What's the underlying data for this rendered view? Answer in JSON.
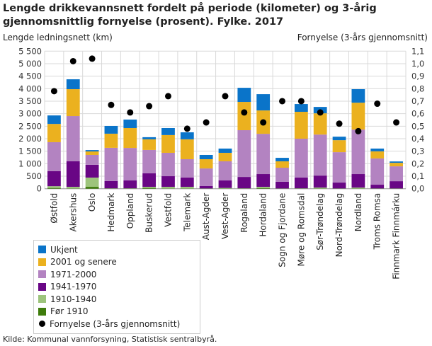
{
  "chart_data": {
    "type": "bar",
    "stacked": true,
    "title": "Lengde drikkevannsnett fordelt på periode (kilometer) og 3-årig gjennomsnittlig fornyelse (prosent). Fylke. 2017",
    "ylabel": "Lengde ledningsnett (km)",
    "y2label": "Fornyelse (3-års gjennomsnitt)",
    "ylim": [
      0,
      5500
    ],
    "y2lim": [
      0,
      1.1
    ],
    "yticks": [
      "0",
      "500",
      "1 000",
      "1 500",
      "2 000",
      "2 500",
      "3 000",
      "3 500",
      "4 000",
      "4 500",
      "5 000",
      "5 500"
    ],
    "y2ticks": [
      "0,0",
      "0,1",
      "0,2",
      "0,3",
      "0,4",
      "0,5",
      "0,6",
      "0,7",
      "0,8",
      "0,9",
      "1,0",
      "1,1"
    ],
    "grid": true,
    "legend_placement": "bottom-left",
    "categories": [
      "Østfold",
      "Akershus",
      "Oslo",
      "Hedmark",
      "Oppland",
      "Buskerud",
      "Vestfold",
      "Telemark",
      "Aust-Agder",
      "Vest-Agder",
      "Rogaland",
      "Hordaland",
      "Sogn og Fjordane",
      "Møre og Romsdal",
      "Sør-Trøndelag",
      "Nord-Trøndelag",
      "Nordland",
      "Troms Romsa",
      "Finnmark Finnmárku"
    ],
    "series": [
      {
        "name": "Før 1910",
        "color": "#3e7c0b",
        "values": [
          30,
          10,
          75,
          5,
          5,
          30,
          5,
          5,
          5,
          5,
          5,
          20,
          5,
          5,
          5,
          5,
          5,
          5,
          5
        ]
      },
      {
        "name": "1910-1940",
        "color": "#9dc47c",
        "values": [
          70,
          65,
          370,
          10,
          10,
          45,
          70,
          70,
          5,
          25,
          10,
          55,
          5,
          10,
          40,
          5,
          40,
          5,
          5
        ]
      },
      {
        "name": "1941-1970",
        "color": "#690685",
        "values": [
          600,
          1020,
          510,
          290,
          315,
          540,
          425,
          370,
          95,
          300,
          455,
          510,
          265,
          430,
          480,
          235,
          540,
          150,
          290
        ]
      },
      {
        "name": "1971-2000",
        "color": "#b383c1",
        "values": [
          1160,
          1810,
          395,
          1330,
          1300,
          935,
          935,
          735,
          705,
          765,
          1870,
          1610,
          565,
          1555,
          1640,
          1215,
          1780,
          1050,
          595
        ]
      },
      {
        "name": "2001 og senere",
        "color": "#ebb11f",
        "values": [
          730,
          1075,
          140,
          565,
          795,
          425,
          710,
          795,
          370,
          340,
          1130,
          935,
          255,
          1075,
          850,
          480,
          1075,
          285,
          140
        ]
      },
      {
        "name": "Ukjent",
        "color": "#0a74c9",
        "values": [
          340,
          395,
          55,
          310,
          340,
          85,
          280,
          280,
          170,
          170,
          565,
          650,
          140,
          310,
          255,
          140,
          540,
          110,
          55
        ]
      }
    ],
    "line_series": {
      "name": "Fornyelse (3-års gjennomsnitt)",
      "axis": "right",
      "marker": "dot",
      "color": "#000000",
      "values": [
        0.78,
        1.02,
        1.04,
        0.67,
        0.61,
        0.66,
        0.74,
        0.48,
        0.53,
        0.74,
        0.61,
        0.53,
        0.7,
        0.7,
        0.61,
        0.52,
        0.46,
        0.68,
        0.53
      ]
    },
    "legend_order": [
      "Ukjent",
      "2001 og senere",
      "1971-2000",
      "1941-1970",
      "1910-1940",
      "Før 1910",
      "Fornyelse (3-års gjennomsnitt)"
    ]
  },
  "source": "Kilde: Kommunal vannforsyning, Statistisk sentralbyrå."
}
